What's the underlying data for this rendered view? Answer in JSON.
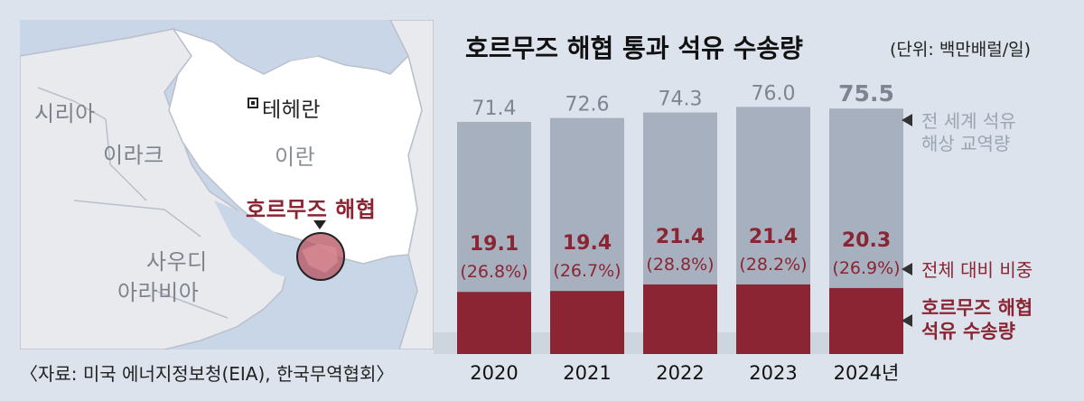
{
  "map": {
    "labels": {
      "syria": "시리아",
      "iraq": "이라크",
      "iran": "이란",
      "tehran": "테헤란",
      "strait": "호르무즈 해협",
      "saudi_line1": "사우디",
      "saudi_line2": "아라비아"
    }
  },
  "source": "〈자료: 미국 에너지정보청(EIA), 한국무역협회〉",
  "colors": {
    "world_bar": "#a6b0be",
    "hormuz_bar": "#8b2533",
    "background": "#dde3ec",
    "world_text": "#7c8591",
    "hormuz_text": "#8b2533"
  },
  "chart_data": {
    "type": "bar",
    "title": "호르무즈 해협 통과 석유 수송량",
    "unit": "(단위: 백만배럴/일)",
    "categories": [
      "2020",
      "2021",
      "2022",
      "2023",
      "2024년"
    ],
    "series": [
      {
        "name": "전 세계 석유 해상 교역량",
        "values": [
          71.4,
          72.6,
          74.3,
          76.0,
          75.5
        ],
        "labels": [
          "71.4",
          "72.6",
          "74.3",
          "76.0",
          "75.5"
        ]
      },
      {
        "name": "호르무즈 해협 석유 수송량",
        "values": [
          19.1,
          19.4,
          21.4,
          21.4,
          20.3
        ],
        "labels": [
          "19.1",
          "19.4",
          "21.4",
          "21.4",
          "20.3"
        ]
      }
    ],
    "share_labels": [
      "(26.8%)",
      "(26.7%)",
      "(28.8%)",
      "(28.2%)",
      "(26.9%)"
    ],
    "share_series_name": "전체 대비 비중",
    "legend": {
      "world_line1": "전 세계 석유",
      "world_line2": "해상 교역량",
      "ratio": "전체 대비 비중",
      "hormuz_line1": "호르무즈 해협",
      "hormuz_line2": "석유 수송량"
    },
    "highlight_index": 4
  }
}
